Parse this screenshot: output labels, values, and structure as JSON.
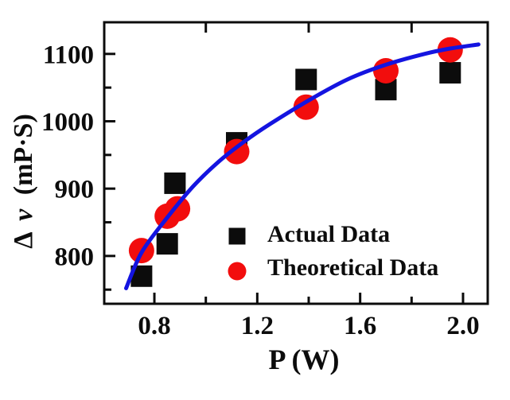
{
  "chart_data": {
    "type": "scatter",
    "title": "",
    "xlabel": "P (W)",
    "ylabel": "Δν (mP·S)",
    "ylabel_parts": {
      "delta": "Δ",
      "nu": "ν",
      "unit": "(mP·S)"
    },
    "xlim": [
      0.605,
      2.096
    ],
    "ylim": [
      729,
      1147
    ],
    "grid": false,
    "frame": "full-box",
    "xticks": {
      "major": [
        0.8,
        1.2,
        1.6,
        2.0
      ],
      "labels": [
        "0.8",
        "1.2",
        "1.6",
        "2.0"
      ],
      "minor": [
        1.0,
        1.4,
        1.8
      ],
      "top_axis_ticks": [
        1.0,
        1.4,
        1.8
      ]
    },
    "yticks": {
      "major": [
        800,
        900,
        1000,
        1100
      ],
      "labels": [
        "800",
        "900",
        "1000",
        "1100"
      ],
      "minor": [
        750,
        850,
        950,
        1050
      ]
    },
    "series": [
      {
        "name": "Actual Data",
        "marker": "square",
        "color": "#0c0c0c",
        "points": [
          [
            0.75,
            770
          ],
          [
            0.85,
            818
          ],
          [
            0.88,
            908
          ],
          [
            1.12,
            968
          ],
          [
            1.39,
            1062
          ],
          [
            1.7,
            1047
          ],
          [
            1.95,
            1072
          ]
        ]
      },
      {
        "name": "Theoretical Data",
        "marker": "circle",
        "color": "#f20d0d",
        "points": [
          [
            0.75,
            808
          ],
          [
            0.85,
            859
          ],
          [
            0.89,
            870
          ],
          [
            1.12,
            955
          ],
          [
            1.39,
            1021
          ],
          [
            1.7,
            1075
          ],
          [
            1.95,
            1106
          ]
        ]
      }
    ],
    "fit_curve": {
      "name": "theoretical fit curve",
      "color": "#1414e0",
      "points": [
        [
          0.69,
          752
        ],
        [
          0.75,
          805
        ],
        [
          0.85,
          857
        ],
        [
          0.95,
          903
        ],
        [
          1.05,
          940
        ],
        [
          1.15,
          970
        ],
        [
          1.25,
          996
        ],
        [
          1.4,
          1031
        ],
        [
          1.55,
          1062
        ],
        [
          1.7,
          1084
        ],
        [
          1.85,
          1100
        ],
        [
          1.95,
          1108
        ],
        [
          2.06,
          1114
        ]
      ]
    },
    "legend": {
      "position": "inside-lower-right",
      "items": [
        {
          "label": "Actual Data",
          "marker": "square"
        },
        {
          "label": "Theoretical Data",
          "marker": "circle"
        }
      ]
    },
    "axis_color": "#0c0c0c"
  }
}
